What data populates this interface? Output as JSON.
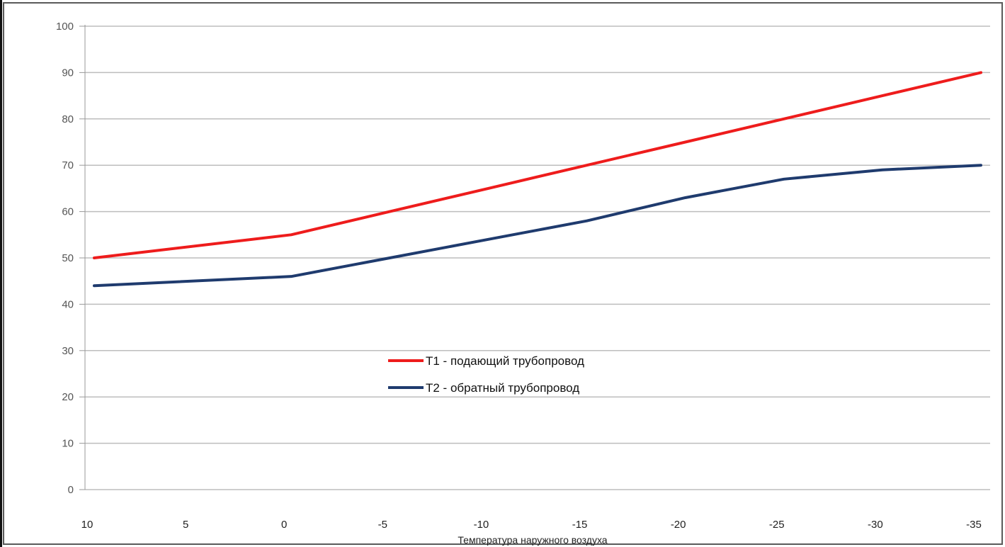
{
  "chart_data": {
    "type": "line",
    "title": "",
    "xlabel": "Температура наружного воздуха",
    "ylabel": "",
    "categories": [
      "10",
      "5",
      "0",
      "-5",
      "-10",
      "-15",
      "-20",
      "-25",
      "-30",
      "-35"
    ],
    "x_values": [
      10,
      5,
      0,
      -5,
      -10,
      -15,
      -20,
      -25,
      -30,
      -35
    ],
    "ylim": [
      0,
      100
    ],
    "y_ticks": [
      "0",
      "10",
      "20",
      "30",
      "40",
      "50",
      "60",
      "70",
      "80",
      "90",
      "100"
    ],
    "grid": true,
    "legend_position": "center",
    "series": [
      {
        "name": "T1 - подающий трубопровод",
        "color": "#ee1c1c",
        "points": [
          [
            10,
            50
          ],
          [
            0,
            55
          ],
          [
            -5,
            60
          ],
          [
            -10,
            65
          ],
          [
            -15,
            70
          ],
          [
            -20,
            75
          ],
          [
            -25,
            80
          ],
          [
            -30,
            85
          ],
          [
            -35,
            90
          ]
        ]
      },
      {
        "name": "T2 - обратный трубопровод",
        "color": "#1f3b6e",
        "points": [
          [
            10,
            44
          ],
          [
            0,
            46
          ],
          [
            -5,
            50
          ],
          [
            -10,
            54
          ],
          [
            -15,
            58
          ],
          [
            -20,
            63
          ],
          [
            -25,
            67
          ],
          [
            -30,
            69
          ],
          [
            -35,
            70
          ]
        ]
      }
    ]
  }
}
